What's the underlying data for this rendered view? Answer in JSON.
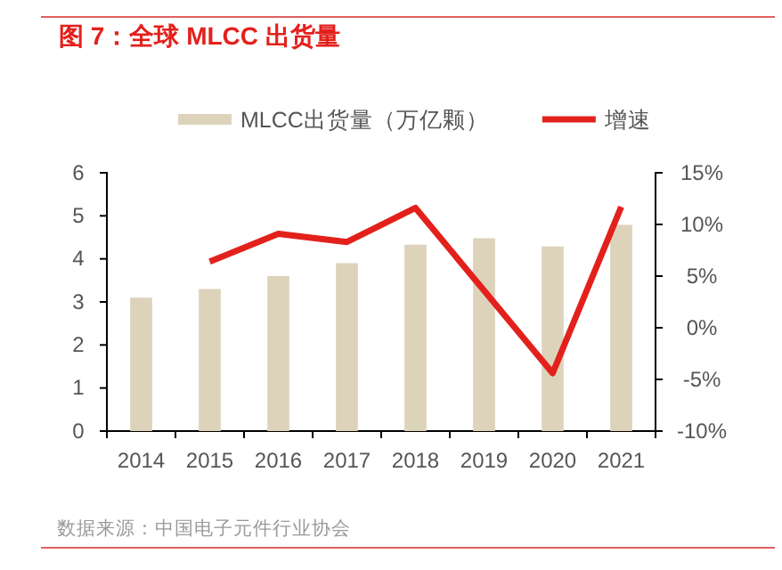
{
  "chart_data": {
    "type": "bar",
    "title": "图 7：全球 MLCC 出货量",
    "categories": [
      "2014",
      "2015",
      "2016",
      "2017",
      "2018",
      "2019",
      "2020",
      "2021"
    ],
    "series": [
      {
        "name": "MLCC出货量（万亿颗）",
        "color": "#ddd3bb",
        "values": [
          3.1,
          3.3,
          3.6,
          3.9,
          4.33,
          4.48,
          4.29,
          4.79
        ]
      },
      {
        "name": "增速",
        "type": "line",
        "axis": "y2",
        "color": "#e3211c",
        "values": [
          null,
          6.4,
          9.1,
          8.3,
          11.6,
          3.6,
          -4.4,
          11.7
        ]
      }
    ],
    "ylim": [
      0,
      6
    ],
    "yticks": [
      0,
      1,
      2,
      3,
      4,
      5,
      6
    ],
    "y2lim": [
      -10,
      15
    ],
    "y2ticks": [
      {
        "value": -10,
        "label": "-10%"
      },
      {
        "value": -5,
        "label": "-5%"
      },
      {
        "value": 0,
        "label": "0%"
      },
      {
        "value": 5,
        "label": "5%"
      },
      {
        "value": 10,
        "label": "10%"
      },
      {
        "value": 15,
        "label": "15%"
      }
    ],
    "legend": "top",
    "grid": false,
    "marker": "none",
    "line_style": "solid",
    "annotations": [
      "数据来源：中国电子元件行业协会"
    ]
  }
}
